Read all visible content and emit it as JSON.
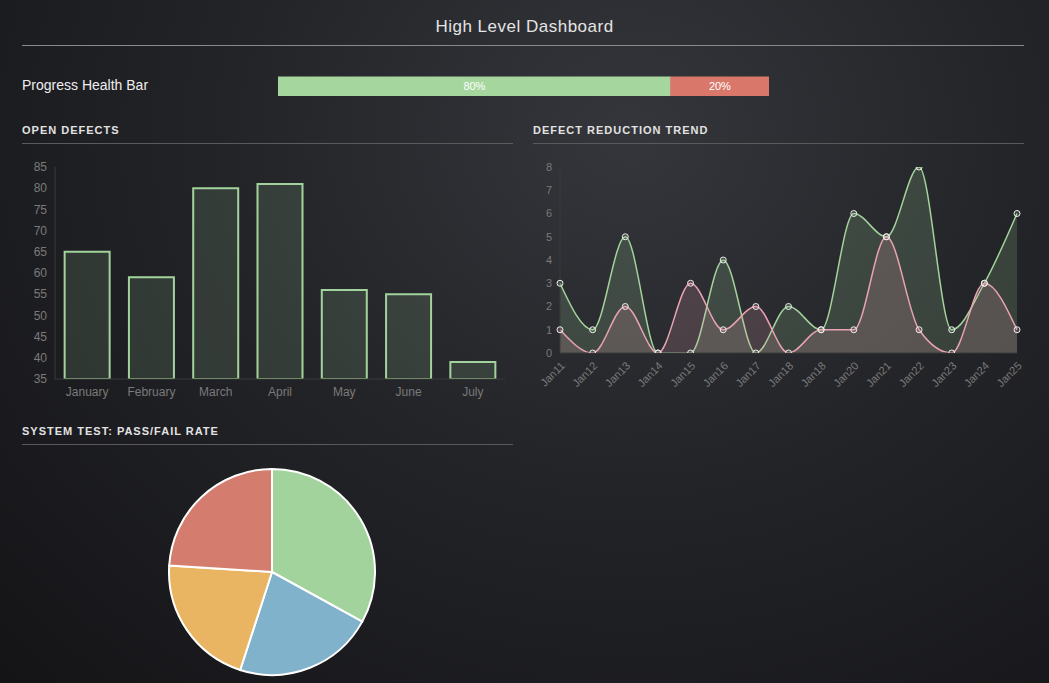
{
  "title": "High Level Dashboard",
  "chart_data": [
    {
      "type": "bar",
      "title": "Progress Health Bar",
      "orientation": "horizontal",
      "stacked": true,
      "data_labels": true,
      "tick_labels": false,
      "xlim": [
        0,
        100
      ],
      "series": [
        {
          "color": "#a5d69e",
          "values": [
            80
          ],
          "value_labels": [
            "80%"
          ]
        },
        {
          "color": "#d9786a",
          "values": [
            20
          ],
          "value_labels": [
            "20%"
          ]
        }
      ]
    },
    {
      "type": "bar",
      "title": "OPEN DEFECTS",
      "categories": [
        "January",
        "February",
        "March",
        "April",
        "May",
        "June",
        "July"
      ],
      "values": [
        65,
        59,
        80,
        81,
        56,
        55,
        39
      ],
      "color": "#a3d39c",
      "ylim": [
        35,
        85
      ],
      "yticks": [
        35,
        40,
        45,
        50,
        55,
        60,
        65,
        70,
        75,
        80,
        85
      ],
      "grid": false
    },
    {
      "type": "area",
      "title": "DEFECT REDUCTION TREND",
      "categories": [
        "Jan11",
        "Jan12",
        "Jan13",
        "Jan14",
        "Jan15",
        "Jan16",
        "Jan17",
        "Jan18",
        "Jan18",
        "Jan20",
        "Jan21",
        "Jan22",
        "Jan23",
        "Jan24",
        "Jan25"
      ],
      "series": [
        {
          "color": "#a3d39c",
          "values": [
            3,
            1,
            5,
            0,
            0,
            4,
            0,
            2,
            1,
            6,
            5,
            8,
            1,
            3,
            6
          ]
        },
        {
          "color": "#e9a3b0",
          "values": [
            1,
            0,
            2,
            0,
            3,
            1,
            2,
            0,
            1,
            1,
            5,
            1,
            0,
            3,
            1
          ]
        }
      ],
      "marker": "circle",
      "ylim": [
        0,
        8
      ],
      "yticks": [
        0,
        1,
        2,
        3,
        4,
        5,
        6,
        7,
        8
      ],
      "grid": false
    },
    {
      "type": "pie",
      "title": "SYSTEM TEST: PASS/FAIL RATE",
      "values": [
        33,
        22,
        21,
        24
      ],
      "colors": [
        "#a3d39c",
        "#80b2cc",
        "#e9b563",
        "#d47c6d"
      ]
    }
  ]
}
